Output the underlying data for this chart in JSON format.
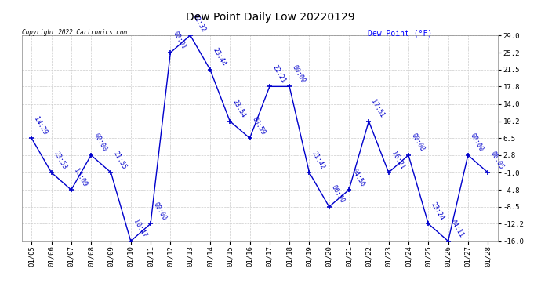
{
  "title": "Dew Point Daily Low 20220129",
  "ylabel": "Dew Point (°F)",
  "copyright": "Copyright 2022 Cartronics.com",
  "background_color": "#ffffff",
  "line_color": "#0000cc",
  "grid_color": "#cccccc",
  "dates": [
    "01/05",
    "01/06",
    "01/07",
    "01/08",
    "01/09",
    "01/10",
    "01/11",
    "01/12",
    "01/13",
    "01/14",
    "01/15",
    "01/16",
    "01/17",
    "01/18",
    "01/19",
    "01/20",
    "01/21",
    "01/22",
    "01/23",
    "01/24",
    "01/25",
    "01/26",
    "01/27",
    "01/28"
  ],
  "values": [
    6.5,
    -1.0,
    -4.8,
    2.8,
    -1.0,
    -16.0,
    -12.2,
    25.2,
    29.0,
    21.5,
    10.2,
    6.5,
    17.8,
    17.8,
    -1.0,
    -8.5,
    -4.8,
    10.2,
    -1.0,
    2.8,
    -12.2,
    -16.0,
    2.8,
    -1.0
  ],
  "times": [
    "14:29",
    "23:53",
    "15:09",
    "00:00",
    "21:55",
    "10:47",
    "00:00",
    "00:01",
    "02:32",
    "23:44",
    "23:54",
    "03:59",
    "22:21",
    "00:00",
    "21:42",
    "06:50",
    "04:56",
    "17:51",
    "16:21",
    "00:08",
    "23:24",
    "04:11",
    "00:00",
    "06:05"
  ],
  "ylim": [
    -16.0,
    29.0
  ],
  "yticks": [
    -16.0,
    -12.2,
    -8.5,
    -4.8,
    -1.0,
    2.8,
    6.5,
    10.2,
    14.0,
    17.8,
    21.5,
    25.2,
    29.0
  ],
  "ytick_labels": [
    "-16.0",
    "-12.2",
    "-8.5",
    "-4.8",
    "-1.0",
    "2.8",
    "6.5",
    "10.2",
    "14.0",
    "17.8",
    "21.5",
    "25.2",
    "29.0"
  ],
  "title_fontsize": 10,
  "label_fontsize": 6,
  "tick_fontsize": 6.5,
  "annotation_fontsize": 6
}
